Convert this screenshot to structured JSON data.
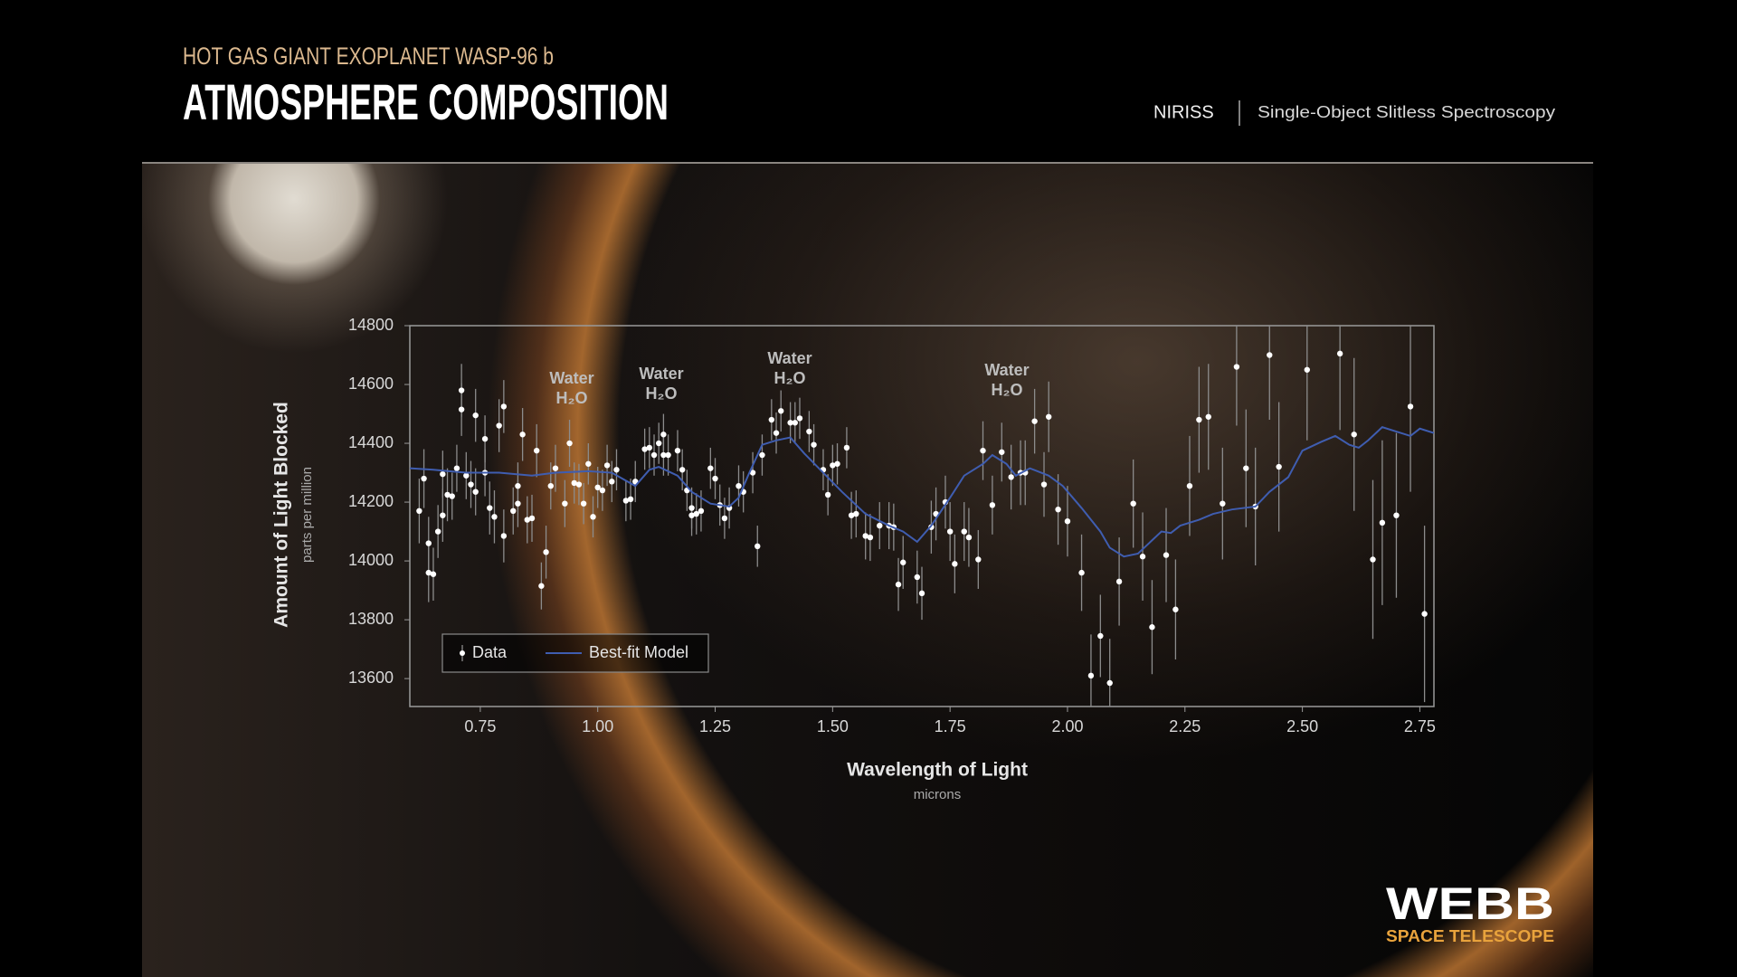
{
  "header": {
    "kicker": "HOT GAS GIANT EXOPLANET WASP-96 b",
    "title": "ATMOSPHERE COMPOSITION",
    "instrument": "NIRISS",
    "mode": "Single-Object Slitless Spectroscopy"
  },
  "logo": {
    "name": "WEBB",
    "tagline": "SPACE TELESCOPE"
  },
  "chart_data": {
    "type": "scatter",
    "x_label": "Wavelength of Light",
    "x_unit": "microns",
    "y_label": "Amount of Light Blocked",
    "y_unit": "parts per million",
    "xlim": [
      0.6,
      2.78
    ],
    "ylim": [
      13505,
      14800
    ],
    "xticks": [
      0.75,
      {
        "value": 1,
        "label": "1.00"
      },
      1.25,
      {
        "value": 1.5,
        "label": "1.50"
      },
      1.75,
      {
        "value": 2,
        "label": "2.00"
      },
      2.25,
      {
        "value": 2.5,
        "label": "2.50"
      },
      2.75
    ],
    "yticks": [
      13600,
      13800,
      14000,
      14200,
      14400,
      14600,
      14800
    ],
    "grid": false,
    "legend": "lower left",
    "annotations": [
      {
        "label": "Water",
        "formula": "H₂O"
      },
      {
        "label": "Water",
        "formula": "H₂O"
      },
      {
        "label": "Water",
        "formula": "H₂O"
      },
      {
        "label": "Water",
        "formula": "H₂O"
      }
    ],
    "series": [
      {
        "name": "Data",
        "type": "scatter",
        "color": "#ffffff",
        "error_color": "#8c8c8c",
        "x": [
          0.62,
          0.63,
          0.64,
          0.64,
          0.65,
          0.66,
          0.67,
          0.67,
          0.68,
          0.69,
          0.7,
          0.71,
          0.71,
          0.72,
          0.73,
          0.74,
          0.74,
          0.76,
          0.76,
          0.77,
          0.78,
          0.79,
          0.8,
          0.8,
          0.82,
          0.83,
          0.83,
          0.84,
          0.85,
          0.86,
          0.87,
          0.88,
          0.89,
          0.9,
          0.91,
          0.93,
          0.94,
          0.95,
          0.96,
          0.97,
          0.98,
          0.99,
          1.0,
          1.01,
          1.02,
          1.03,
          1.04,
          1.06,
          1.07,
          1.08,
          1.1,
          1.11,
          1.12,
          1.13,
          1.14,
          1.14,
          1.15,
          1.17,
          1.18,
          1.19,
          1.2,
          1.2,
          1.21,
          1.22,
          1.24,
          1.25,
          1.26,
          1.27,
          1.28,
          1.3,
          1.31,
          1.33,
          1.34,
          1.35,
          1.37,
          1.38,
          1.39,
          1.41,
          1.42,
          1.43,
          1.45,
          1.46,
          1.48,
          1.49,
          1.5,
          1.51,
          1.53,
          1.54,
          1.55,
          1.57,
          1.58,
          1.6,
          1.62,
          1.63,
          1.64,
          1.65,
          1.68,
          1.69,
          1.71,
          1.72,
          1.74,
          1.75,
          1.76,
          1.78,
          1.79,
          1.81,
          1.82,
          1.84,
          1.86,
          1.88,
          1.9,
          1.91,
          1.93,
          1.95,
          1.96,
          1.98,
          2.0,
          2.03,
          2.05,
          2.07,
          2.09,
          2.11,
          2.14,
          2.16,
          2.18,
          2.21,
          2.23,
          2.26,
          2.28,
          2.3,
          2.33,
          2.36,
          2.38,
          2.4,
          2.43,
          2.45,
          2.51,
          2.58,
          2.61,
          2.65,
          2.67,
          2.7,
          2.73,
          2.76
        ],
        "values": [
          14170,
          14280,
          14060,
          13960,
          13955,
          14100,
          14155,
          14295,
          14225,
          14220,
          14315,
          14580,
          14515,
          14290,
          14260,
          14235,
          14495,
          14415,
          14300,
          14180,
          14150,
          14460,
          14525,
          14085,
          14170,
          14195,
          14255,
          14430,
          14140,
          14145,
          14375,
          13915,
          14030,
          14255,
          14315,
          14195,
          14400,
          14265,
          14260,
          14195,
          14330,
          14150,
          14250,
          14240,
          14325,
          14270,
          14310,
          14205,
          14210,
          14270,
          14380,
          14385,
          14360,
          14400,
          14360,
          14430,
          14360,
          14375,
          14310,
          14240,
          14180,
          14155,
          14160,
          14170,
          14315,
          14280,
          14190,
          14145,
          14180,
          14255,
          14235,
          14300,
          14050,
          14360,
          14480,
          14435,
          14510,
          14470,
          14470,
          14485,
          14440,
          14395,
          14310,
          14225,
          14325,
          14330,
          14385,
          14155,
          14160,
          14085,
          14080,
          14120,
          14120,
          14115,
          13920,
          13995,
          13945,
          13890,
          14115,
          14160,
          14200,
          14100,
          13990,
          14100,
          14080,
          14005,
          14375,
          14190,
          14370,
          14285,
          14300,
          14300,
          14475,
          14260,
          14490,
          14175,
          14135,
          13960,
          13610,
          13745,
          13585,
          13930,
          14195,
          14015,
          13775,
          14020,
          13835,
          14255,
          14480,
          14490,
          14195,
          14660,
          14315,
          14185,
          14700,
          14320,
          14650,
          14705,
          14430,
          14005,
          14130,
          14155,
          14525,
          13820
        ],
        "errors": [
          110,
          100,
          90,
          100,
          90,
          90,
          90,
          80,
          90,
          80,
          80,
          90,
          90,
          80,
          80,
          80,
          90,
          80,
          80,
          90,
          90,
          90,
          90,
          90,
          80,
          80,
          80,
          90,
          80,
          80,
          90,
          80,
          90,
          80,
          80,
          80,
          80,
          70,
          70,
          70,
          70,
          70,
          70,
          70,
          70,
          70,
          70,
          70,
          70,
          70,
          70,
          70,
          70,
          70,
          70,
          70,
          70,
          70,
          70,
          70,
          70,
          70,
          70,
          70,
          70,
          70,
          70,
          70,
          70,
          70,
          70,
          70,
          70,
          70,
          70,
          70,
          70,
          70,
          70,
          70,
          70,
          70,
          70,
          70,
          70,
          70,
          70,
          80,
          80,
          80,
          80,
          80,
          80,
          80,
          90,
          90,
          90,
          90,
          90,
          90,
          90,
          100,
          100,
          100,
          100,
          100,
          100,
          100,
          100,
          110,
          110,
          110,
          110,
          110,
          120,
          120,
          120,
          130,
          140,
          140,
          150,
          150,
          150,
          150,
          160,
          160,
          170,
          170,
          180,
          180,
          190,
          200,
          200,
          200,
          220,
          220,
          240,
          260,
          260,
          270,
          280,
          280,
          290,
          300
        ]
      },
      {
        "name": "Best-fit Model",
        "type": "line",
        "color": "#3f5db0",
        "x": [
          0.6,
          0.65,
          0.72,
          0.79,
          0.86,
          0.91,
          0.98,
          1.03,
          1.08,
          1.11,
          1.13,
          1.17,
          1.2,
          1.24,
          1.28,
          1.3,
          1.32,
          1.35,
          1.38,
          1.41,
          1.44,
          1.48,
          1.52,
          1.57,
          1.62,
          1.65,
          1.68,
          1.71,
          1.75,
          1.78,
          1.82,
          1.84,
          1.87,
          1.89,
          1.92,
          1.96,
          1.99,
          2.03,
          2.07,
          2.09,
          2.12,
          2.15,
          2.17,
          2.2,
          2.22,
          2.24,
          2.28,
          2.31,
          2.35,
          2.4,
          2.43,
          2.47,
          2.5,
          2.54,
          2.57,
          2.6,
          2.62,
          2.64,
          2.67,
          2.7,
          2.73,
          2.75,
          2.78
        ],
        "values": [
          14315,
          14310,
          14300,
          14300,
          14290,
          14300,
          14305,
          14300,
          14255,
          14310,
          14320,
          14290,
          14235,
          14195,
          14185,
          14215,
          14290,
          14395,
          14410,
          14420,
          14365,
          14300,
          14235,
          14160,
          14120,
          14100,
          14065,
          14120,
          14215,
          14290,
          14330,
          14360,
          14330,
          14290,
          14315,
          14290,
          14255,
          14180,
          14100,
          14045,
          14015,
          14025,
          14055,
          14100,
          14095,
          14120,
          14140,
          14160,
          14175,
          14185,
          14235,
          14285,
          14375,
          14405,
          14425,
          14395,
          14385,
          14410,
          14455,
          14440,
          14425,
          14450,
          14435
        ]
      }
    ]
  }
}
